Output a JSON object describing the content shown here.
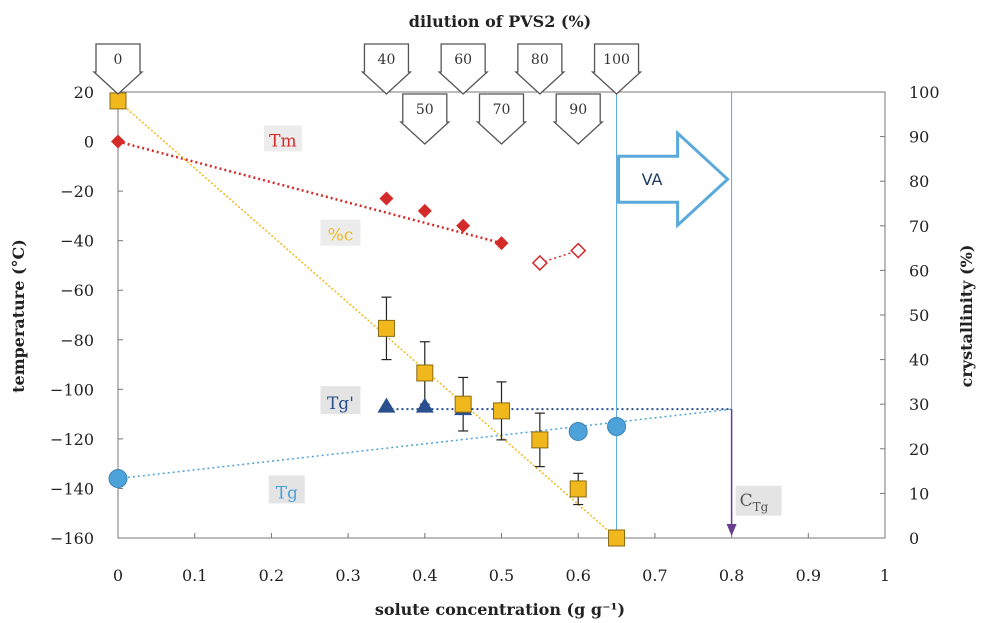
{
  "chart_data": {
    "type": "scatter",
    "title": "dilution of PVS2 (%)",
    "xlabel": "solute concentration (g g⁻¹)",
    "ylabel_left": "temperature (°C)",
    "ylabel_right": "crystallinity (%)",
    "xlim": [
      0,
      1
    ],
    "ylim_left": [
      -160,
      20
    ],
    "ylim_right": [
      0,
      100
    ],
    "x_ticks": [
      "0",
      "0.1",
      "0.2",
      "0.3",
      "0.4",
      "0.5",
      "0.6",
      "0.7",
      "0.8",
      "0.9",
      "1"
    ],
    "y_left_ticks": [
      "20",
      "0",
      "−20",
      "−40",
      "−60",
      "−80",
      "−100",
      "−120",
      "−140",
      "−160"
    ],
    "y_right_ticks": [
      "100",
      "90",
      "80",
      "70",
      "60",
      "50",
      "40",
      "30",
      "20",
      "10",
      "0"
    ],
    "dilution_markers": [
      {
        "x": 0,
        "label": "0",
        "row": 1
      },
      {
        "x": 0.35,
        "label": "40",
        "row": 1
      },
      {
        "x": 0.45,
        "label": "60",
        "row": 1
      },
      {
        "x": 0.55,
        "label": "80",
        "row": 1
      },
      {
        "x": 0.65,
        "label": "100",
        "row": 1
      },
      {
        "x": 0.4,
        "label": "50",
        "row": 2
      },
      {
        "x": 0.5,
        "label": "70",
        "row": 2
      },
      {
        "x": 0.6,
        "label": "90",
        "row": 2
      }
    ],
    "series": [
      {
        "name": "Tm",
        "axis": "left",
        "marker": "diamond",
        "color": "#d42a2a",
        "points": [
          {
            "x": 0,
            "y": 0
          },
          {
            "x": 0.35,
            "y": -23
          },
          {
            "x": 0.4,
            "y": -28
          },
          {
            "x": 0.45,
            "y": -34
          },
          {
            "x": 0.5,
            "y": -41
          }
        ],
        "open_points": [
          {
            "x": 0.55,
            "y": -49
          },
          {
            "x": 0.6,
            "y": -44
          }
        ],
        "trend": [
          [
            0,
            0
          ],
          [
            0.5,
            -41
          ]
        ]
      },
      {
        "name": "%c",
        "axis": "right",
        "marker": "square",
        "color": "#f0b81c",
        "points": [
          {
            "x": 0,
            "y": 98,
            "err": 0
          },
          {
            "x": 0.35,
            "y": 47,
            "err": 7
          },
          {
            "x": 0.4,
            "y": 37,
            "err": 7
          },
          {
            "x": 0.45,
            "y": 30,
            "err": 6
          },
          {
            "x": 0.5,
            "y": 28.5,
            "err": 6.5
          },
          {
            "x": 0.55,
            "y": 22,
            "err": 6
          },
          {
            "x": 0.6,
            "y": 11,
            "err": 3.5
          },
          {
            "x": 0.65,
            "y": 0,
            "err": 0
          }
        ],
        "trend": [
          [
            0,
            98
          ],
          [
            0.65,
            0
          ]
        ]
      },
      {
        "name": "Tg'",
        "axis": "left",
        "marker": "triangle",
        "color": "#2a4f8f",
        "points": [
          {
            "x": 0.35,
            "y": -107
          },
          {
            "x": 0.4,
            "y": -107
          },
          {
            "x": 0.45,
            "y": -108
          }
        ],
        "trend": [
          [
            0.35,
            -108
          ],
          [
            0.8,
            -108
          ]
        ]
      },
      {
        "name": "Tg",
        "axis": "left",
        "marker": "circle",
        "color": "#4da3d9",
        "points": [
          {
            "x": 0,
            "y": -136
          },
          {
            "x": 0.6,
            "y": -117
          },
          {
            "x": 0.65,
            "y": -115
          }
        ],
        "trend": [
          [
            0,
            -136
          ],
          [
            0.8,
            -108
          ]
        ]
      }
    ],
    "annotations": {
      "va_label": "VA",
      "ctg_label": "C",
      "ctg_sub": "Tg",
      "ctg_x": 0.8,
      "ctg_y": -108,
      "vlines_x": [
        0.65,
        0.8
      ],
      "va_arrow_x": [
        0.65,
        0.8
      ]
    }
  }
}
